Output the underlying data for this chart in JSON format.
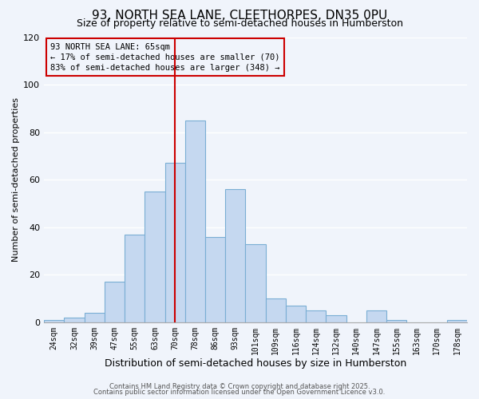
{
  "title": "93, NORTH SEA LANE, CLEETHORPES, DN35 0PU",
  "subtitle": "Size of property relative to semi-detached houses in Humberston",
  "xlabel": "Distribution of semi-detached houses by size in Humberston",
  "ylabel": "Number of semi-detached properties",
  "bin_labels": [
    "24sqm",
    "32sqm",
    "39sqm",
    "47sqm",
    "55sqm",
    "63sqm",
    "70sqm",
    "78sqm",
    "86sqm",
    "93sqm",
    "101sqm",
    "109sqm",
    "116sqm",
    "124sqm",
    "132sqm",
    "140sqm",
    "147sqm",
    "155sqm",
    "163sqm",
    "170sqm",
    "178sqm"
  ],
  "bar_heights": [
    1,
    2,
    4,
    17,
    37,
    55,
    67,
    85,
    36,
    56,
    33,
    10,
    7,
    5,
    3,
    0,
    5,
    1,
    0,
    0,
    1
  ],
  "bar_color": "#c5d8f0",
  "bar_edge_color": "#7aaed4",
  "marker_label": "93 NORTH SEA LANE: 65sqm",
  "pct_smaller": 17,
  "n_smaller": 70,
  "pct_larger": 83,
  "n_larger": 348,
  "marker_line_color": "#cc0000",
  "ylim": [
    0,
    120
  ],
  "yticks": [
    0,
    20,
    40,
    60,
    80,
    100,
    120
  ],
  "footer1": "Contains HM Land Registry data © Crown copyright and database right 2025.",
  "footer2": "Contains public sector information licensed under the Open Government Licence v3.0.",
  "background_color": "#f0f4fb",
  "grid_color": "#ffffff",
  "title_fontsize": 11,
  "subtitle_fontsize": 9,
  "xlabel_fontsize": 9,
  "ylabel_fontsize": 8,
  "ytick_fontsize": 8,
  "xtick_fontsize": 7,
  "annot_fontsize": 7.5,
  "footer_fontsize": 6
}
